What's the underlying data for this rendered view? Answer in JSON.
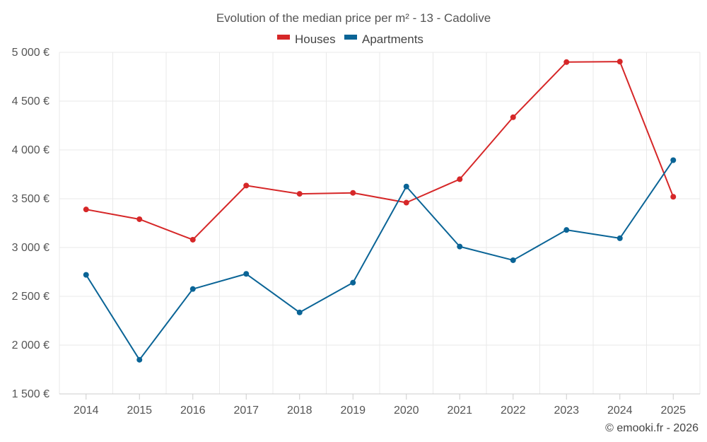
{
  "chart_data": {
    "type": "line",
    "title": "Evolution of the median price per m² - 13 - Cadolive",
    "categories": [
      "2014",
      "2015",
      "2016",
      "2017",
      "2018",
      "2019",
      "2020",
      "2021",
      "2022",
      "2023",
      "2024",
      "2025"
    ],
    "series": [
      {
        "name": "Houses",
        "color": "#d62728",
        "values": [
          3390,
          3290,
          3080,
          3635,
          3550,
          3560,
          3460,
          3700,
          4335,
          4900,
          4905,
          3520
        ]
      },
      {
        "name": "Apartments",
        "color": "#0a6496",
        "values": [
          2720,
          1850,
          2575,
          2730,
          2335,
          2640,
          3625,
          3010,
          2870,
          3180,
          3095,
          3895
        ]
      }
    ],
    "yaxis": {
      "min": 1500,
      "max": 5000,
      "tick_values": [
        1500,
        2000,
        2500,
        3000,
        3500,
        4000,
        4500,
        5000
      ],
      "tick_labels": [
        "1 500 €",
        "2 000 €",
        "2 500 €",
        "3 000 €",
        "3 500 €",
        "4 000 €",
        "4 500 €",
        "5 000 €"
      ]
    },
    "grid": true,
    "legend_position": "top-center"
  },
  "credit": "© emooki.fr - 2026"
}
